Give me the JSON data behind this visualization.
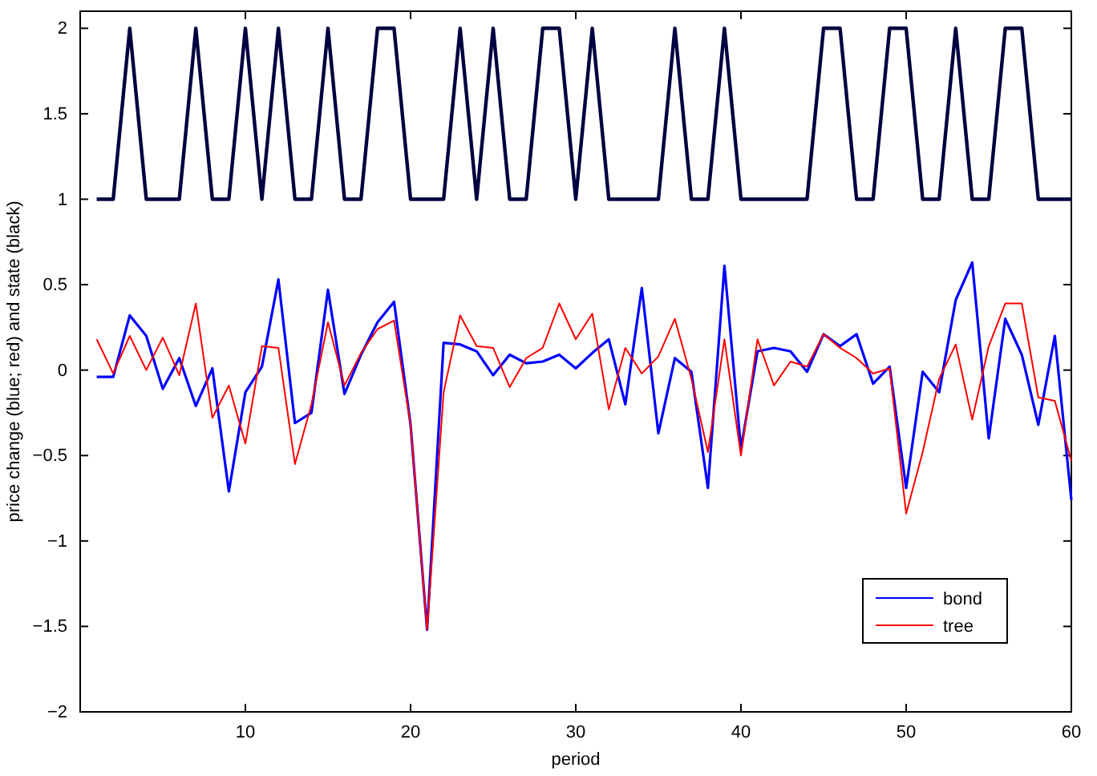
{
  "chart_data": {
    "type": "line",
    "xlabel": "period",
    "ylabel": "price change (blue; red) and state (black)",
    "x": [
      1,
      2,
      3,
      4,
      5,
      6,
      7,
      8,
      9,
      10,
      11,
      12,
      13,
      14,
      15,
      16,
      17,
      18,
      19,
      20,
      21,
      22,
      23,
      24,
      25,
      26,
      27,
      28,
      29,
      30,
      31,
      32,
      33,
      34,
      35,
      36,
      37,
      38,
      39,
      40,
      41,
      42,
      43,
      44,
      45,
      46,
      47,
      48,
      49,
      50,
      51,
      52,
      53,
      54,
      55,
      56,
      57,
      58,
      59,
      60
    ],
    "xlim": [
      0,
      60
    ],
    "xticks": [
      10,
      20,
      30,
      40,
      50,
      60
    ],
    "ylim": [
      -2,
      2.1
    ],
    "yticks": [
      {
        "value": -2,
        "label": "−2"
      },
      {
        "value": -1.5,
        "label": "−1.5"
      },
      {
        "value": -1,
        "label": "−1"
      },
      {
        "value": -0.5,
        "label": "−0.5"
      },
      0,
      0.5,
      1,
      1.5,
      2
    ],
    "series": [
      {
        "color": "#000040",
        "values": [
          1,
          1,
          2,
          1,
          1,
          1,
          2,
          1,
          1,
          2,
          1,
          2,
          1,
          1,
          2,
          1,
          1,
          2,
          2,
          1,
          1,
          1,
          2,
          1,
          2,
          1,
          1,
          2,
          2,
          1,
          2,
          1,
          1,
          1,
          1,
          2,
          1,
          1,
          2,
          1,
          1,
          1,
          1,
          1,
          2,
          2,
          1,
          1,
          2,
          2,
          1,
          1,
          2,
          1,
          1,
          2,
          2,
          1,
          1,
          1
        ]
      },
      {
        "name": "bond",
        "color": "#0000ff",
        "values": [
          -0.04,
          -0.04,
          0.32,
          0.2,
          -0.11,
          0.07,
          -0.21,
          0.01,
          -0.71,
          -0.13,
          0.02,
          0.53,
          -0.31,
          -0.25,
          0.47,
          -0.14,
          0.09,
          0.28,
          0.4,
          -0.32,
          -1.52,
          0.16,
          0.15,
          0.11,
          -0.03,
          0.09,
          0.04,
          0.05,
          0.09,
          0.01,
          0.1,
          0.18,
          -0.2,
          0.48,
          -0.37,
          0.07,
          -0.01,
          -0.69,
          0.61,
          -0.46,
          0.11,
          0.13,
          0.11,
          -0.01,
          0.21,
          0.14,
          0.21,
          -0.08,
          0.02,
          -0.69,
          -0.01,
          -0.13,
          0.41,
          0.63,
          -0.4,
          0.3,
          0.09,
          -0.32,
          0.2,
          -0.76
        ]
      },
      {
        "name": "tree",
        "color": "#ff0000",
        "values": [
          0.18,
          -0.02,
          0.2,
          0,
          0.19,
          -0.03,
          0.39,
          -0.28,
          -0.09,
          -0.43,
          0.14,
          0.13,
          -0.55,
          -0.2,
          0.28,
          -0.09,
          0.1,
          0.24,
          0.29,
          -0.32,
          -1.52,
          -0.13,
          0.32,
          0.14,
          0.13,
          -0.1,
          0.07,
          0.13,
          0.39,
          0.18,
          0.33,
          -0.23,
          0.13,
          -0.02,
          0.08,
          0.3,
          -0.05,
          -0.48,
          0.18,
          -0.5,
          0.18,
          -0.09,
          0.05,
          0.02,
          0.21,
          0.13,
          0.07,
          -0.02,
          0.01,
          -0.84,
          -0.48,
          -0.05,
          0.15,
          -0.29,
          0.14,
          0.39,
          0.39,
          -0.16,
          -0.18,
          -0.53
        ]
      }
    ],
    "legend": "bottom right",
    "grid": false,
    "marker": "none",
    "line_style": "solid"
  }
}
